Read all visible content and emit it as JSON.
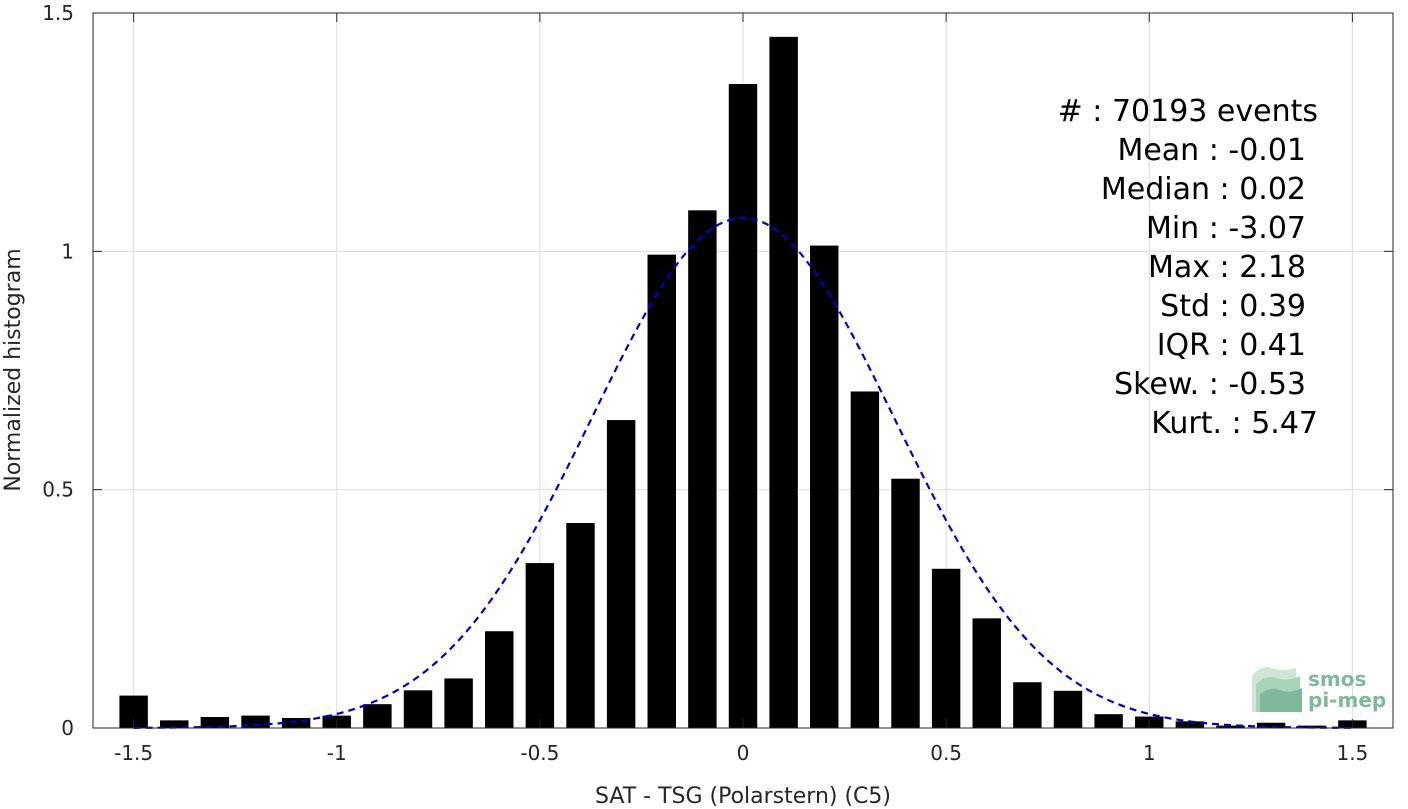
{
  "chart_data": {
    "type": "bar",
    "xlabel": "SAT - TSG (Polarstern) (C5)",
    "ylabel": "Normalized histogram",
    "xlim": [
      -1.6,
      1.6
    ],
    "ylim": [
      0,
      1.5
    ],
    "xticks": [
      -1.5,
      -1,
      -0.5,
      0,
      0.5,
      1,
      1.5
    ],
    "xtick_labels": [
      "-1.5",
      "-1",
      "-0.5",
      "0",
      "0.5",
      "1",
      "1.5"
    ],
    "yticks": [
      0,
      0.5,
      1,
      1.5
    ],
    "ytick_labels": [
      "0",
      "0.5",
      "1",
      "1.5"
    ],
    "grid": true,
    "bar_width": 0.07,
    "x": [
      -1.5,
      -1.4,
      -1.3,
      -1.2,
      -1.1,
      -1.0,
      -0.9,
      -0.8,
      -0.7,
      -0.6,
      -0.5,
      -0.4,
      -0.3,
      -0.2,
      -0.1,
      0.0,
      0.1,
      0.2,
      0.3,
      0.4,
      0.5,
      0.6,
      0.7,
      0.8,
      0.9,
      1.0,
      1.1,
      1.2,
      1.3,
      1.4,
      1.5
    ],
    "values": [
      0.068,
      0.016,
      0.023,
      0.026,
      0.021,
      0.026,
      0.05,
      0.079,
      0.104,
      0.203,
      0.346,
      0.43,
      0.646,
      0.993,
      1.086,
      1.351,
      1.45,
      1.012,
      0.706,
      0.523,
      0.334,
      0.23,
      0.096,
      0.078,
      0.029,
      0.024,
      0.014,
      0.005,
      0.011,
      0.005,
      0.016
    ],
    "fit": {
      "type": "gaussian",
      "mean": 0.0,
      "std": 0.373,
      "peak": 1.07,
      "color": "#0000cc",
      "style": "dashed"
    },
    "bar_color": "#000000",
    "annotation_lines": [
      "#  : 70193 events",
      "Mean : -0.01",
      "Median : 0.02",
      "Min : -3.07",
      "Max : 2.18",
      "Std : 0.39",
      "IQR : 0.41",
      "Skew. : -0.53",
      "Kurt. : 5.47"
    ]
  },
  "logo": {
    "line1": "smos",
    "line2": "pi-mep",
    "color": "#7fb89a"
  }
}
